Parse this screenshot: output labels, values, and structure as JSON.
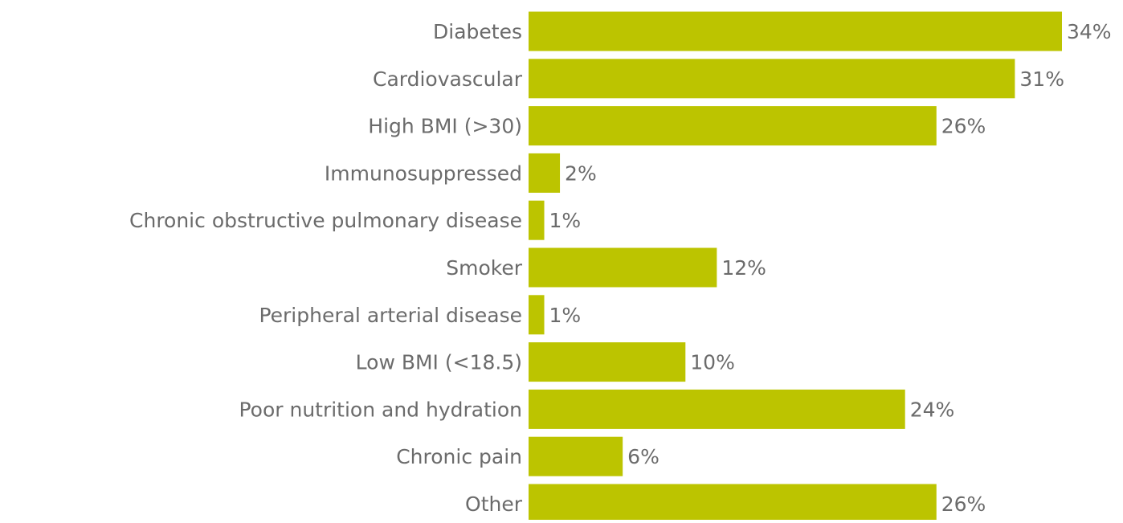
{
  "chart_data": {
    "type": "bar",
    "orientation": "horizontal",
    "categories": [
      "Diabetes",
      "Cardiovascular",
      "High BMI (>30)",
      "Immunosuppressed",
      "Chronic obstructive pulmonary disease",
      "Smoker",
      "Peripheral arterial disease",
      "Low BMI (<18.5)",
      "Poor nutrition and hydration",
      "Chronic pain",
      "Other"
    ],
    "values": [
      34,
      31,
      26,
      2,
      1,
      12,
      1,
      10,
      24,
      6,
      26
    ],
    "value_labels": [
      "34%",
      "31%",
      "26%",
      "2%",
      "1%",
      "12%",
      "1%",
      "10%",
      "24%",
      "6%",
      "26%"
    ],
    "color": "#bcc400"
  }
}
